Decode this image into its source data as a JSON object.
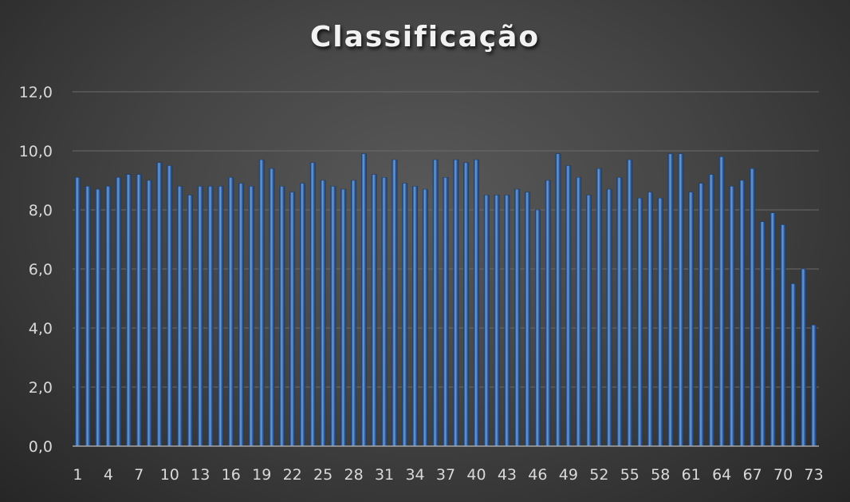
{
  "chart_data": {
    "type": "bar",
    "title": "Classificação",
    "xlabel": "",
    "ylabel": "",
    "ylim": [
      0,
      12
    ],
    "y_ticks": [
      "0,0",
      "2,0",
      "4,0",
      "6,0",
      "8,0",
      "10,0",
      "12,0"
    ],
    "x_tick_labels": [
      "1",
      "4",
      "7",
      "10",
      "13",
      "16",
      "19",
      "22",
      "25",
      "28",
      "31",
      "34",
      "37",
      "40",
      "43",
      "46",
      "49",
      "52",
      "55",
      "58",
      "61",
      "64",
      "67",
      "70",
      "73"
    ],
    "grid": true,
    "legend": false,
    "categories": [
      1,
      2,
      3,
      4,
      5,
      6,
      7,
      8,
      9,
      10,
      11,
      12,
      13,
      14,
      15,
      16,
      17,
      18,
      19,
      20,
      21,
      22,
      23,
      24,
      25,
      26,
      27,
      28,
      29,
      30,
      31,
      32,
      33,
      34,
      35,
      36,
      37,
      38,
      39,
      40,
      41,
      42,
      43,
      44,
      45,
      46,
      47,
      48,
      49,
      50,
      51,
      52,
      53,
      54,
      55,
      56,
      57,
      58,
      59,
      60,
      61,
      62,
      63,
      64,
      65,
      66,
      67,
      68,
      69,
      70,
      71,
      72,
      73
    ],
    "values": [
      9.1,
      8.8,
      8.7,
      8.8,
      9.1,
      9.2,
      9.2,
      9.0,
      9.6,
      9.5,
      8.8,
      8.5,
      8.8,
      8.8,
      8.8,
      9.1,
      8.9,
      8.8,
      9.7,
      9.4,
      8.8,
      8.6,
      8.9,
      9.6,
      9.0,
      8.8,
      8.7,
      9.0,
      9.9,
      9.2,
      9.1,
      9.7,
      8.9,
      8.8,
      8.7,
      9.7,
      9.1,
      9.7,
      9.6,
      9.7,
      8.5,
      8.5,
      8.5,
      8.7,
      8.6,
      8.0,
      9.0,
      9.9,
      9.5,
      9.1,
      8.5,
      9.4,
      8.7,
      9.1,
      9.7,
      8.4,
      8.6,
      8.4,
      9.9,
      9.9,
      8.6,
      8.9,
      9.2,
      9.8,
      8.8,
      9.0,
      9.4,
      7.6,
      7.9,
      7.5,
      5.5,
      6.0,
      4.1
    ],
    "colors": {
      "bar": "#2e5fa3",
      "bar_highlight": "#6f9fd8",
      "bar_shadow": "#1a3a6a",
      "grid": "#6b6b6b",
      "axis": "#a6a6a6",
      "text": "#d9d9d9",
      "title": "#f2f2f2"
    }
  }
}
